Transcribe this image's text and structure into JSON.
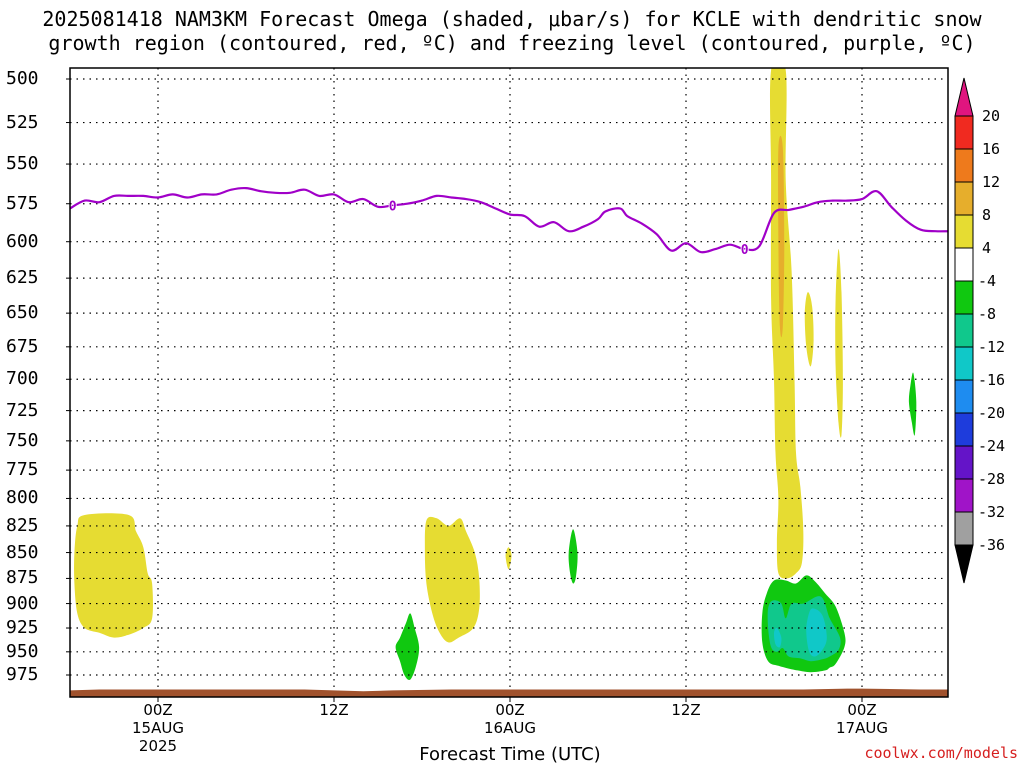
{
  "title": {
    "line1": "2025081418 NAM3KM Forecast Omega (shaded, μbar/s) for KCLE with dendritic snow",
    "line2": "growth region (contoured, red, ºC) and freezing level (contoured, purple, ºC)"
  },
  "credit": "coolwx.com/models",
  "chart_data": {
    "type": "heatmap",
    "xlabel": "Forecast Time (UTC)",
    "ylabel": "",
    "x_ticks": [
      {
        "hours": 10,
        "label": "00Z",
        "sub1": "15AUG",
        "sub2": "2025"
      },
      {
        "hours": 22,
        "label": "12Z",
        "sub1": "",
        "sub2": ""
      },
      {
        "hours": 34,
        "label": "00Z",
        "sub1": "16AUG",
        "sub2": ""
      },
      {
        "hours": 46,
        "label": "12Z",
        "sub1": "",
        "sub2": ""
      },
      {
        "hours": 58,
        "label": "00Z",
        "sub1": "17AUG",
        "sub2": ""
      }
    ],
    "xlim_hours": [
      4,
      64
    ],
    "y_levels": [
      500,
      525,
      550,
      575,
      600,
      625,
      650,
      675,
      700,
      725,
      750,
      775,
      800,
      825,
      850,
      875,
      900,
      925,
      950,
      975
    ],
    "ylim_hPa": [
      493,
      998
    ],
    "colorbar": {
      "labels": [
        "20",
        "16",
        "12",
        "8",
        "4",
        "-4",
        "-8",
        "-12",
        "-16",
        "-20",
        "-24",
        "-28",
        "-32",
        "-36"
      ],
      "colors": [
        "#e0157f",
        "#f02a20",
        "#ee7a1c",
        "#e6ae2c",
        "#e6dc32",
        "#ffffff",
        "#10c810",
        "#10c88c",
        "#10c8c8",
        "#1e8cf0",
        "#1e3cdc",
        "#6414c8",
        "#a014c8",
        "#a0a0a0",
        "#000000"
      ]
    },
    "freezing_level": {
      "contour_label": "0",
      "color": "#a000c8",
      "points": [
        [
          4,
          578
        ],
        [
          5,
          573
        ],
        [
          6,
          574
        ],
        [
          7,
          570
        ],
        [
          8,
          570
        ],
        [
          9,
          570
        ],
        [
          10,
          571
        ],
        [
          11,
          569
        ],
        [
          12,
          571
        ],
        [
          13,
          569
        ],
        [
          14,
          569
        ],
        [
          15,
          566
        ],
        [
          16,
          565
        ],
        [
          17,
          567
        ],
        [
          18,
          568
        ],
        [
          19,
          568
        ],
        [
          20,
          566
        ],
        [
          21,
          570
        ],
        [
          22,
          569
        ],
        [
          23,
          574
        ],
        [
          24,
          572
        ],
        [
          25,
          577
        ],
        [
          26,
          576
        ],
        [
          27,
          575
        ],
        [
          28,
          573
        ],
        [
          29,
          570
        ],
        [
          30,
          571
        ],
        [
          31,
          572
        ],
        [
          32,
          574
        ],
        [
          33,
          578
        ],
        [
          34,
          582
        ],
        [
          35,
          583
        ],
        [
          36,
          590
        ],
        [
          37,
          587
        ],
        [
          38,
          593
        ],
        [
          39,
          590
        ],
        [
          40,
          585
        ],
        [
          40.5,
          580
        ],
        [
          41.5,
          578
        ],
        [
          42,
          583
        ],
        [
          43,
          588
        ],
        [
          44,
          595
        ],
        [
          45,
          606
        ],
        [
          46,
          601
        ],
        [
          47,
          607
        ],
        [
          48,
          605
        ],
        [
          49,
          602
        ],
        [
          50,
          605
        ],
        [
          51,
          603
        ],
        [
          52,
          581
        ],
        [
          53,
          579
        ],
        [
          54,
          577
        ],
        [
          55,
          574
        ],
        [
          56,
          573
        ],
        [
          57,
          573
        ],
        [
          58,
          572
        ],
        [
          59,
          567
        ],
        [
          60,
          577
        ],
        [
          61,
          586
        ],
        [
          62,
          592
        ],
        [
          63,
          593
        ],
        [
          64,
          593
        ]
      ]
    },
    "regions": [
      {
        "value": "4 to 8",
        "color": "#e6dc32",
        "points": [
          [
            4.5,
            825
          ],
          [
            5,
            815
          ],
          [
            8,
            815
          ],
          [
            8.5,
            830
          ],
          [
            9,
            845
          ],
          [
            9.3,
            870
          ],
          [
            9.6,
            880
          ],
          [
            9.6,
            915
          ],
          [
            9,
            925
          ],
          [
            8,
            932
          ],
          [
            7,
            935
          ],
          [
            6,
            930
          ],
          [
            5,
            925
          ],
          [
            4.5,
            910
          ],
          [
            4.3,
            880
          ],
          [
            4.3,
            850
          ]
        ]
      },
      {
        "value": "4 to 8",
        "color": "#e6dc32",
        "points": [
          [
            28.3,
            820
          ],
          [
            29,
            818
          ],
          [
            29.8,
            825
          ],
          [
            30.6,
            818
          ],
          [
            31,
            830
          ],
          [
            31.6,
            850
          ],
          [
            31.9,
            875
          ],
          [
            31.9,
            905
          ],
          [
            31.5,
            925
          ],
          [
            30.5,
            935
          ],
          [
            29.8,
            940
          ],
          [
            29.2,
            930
          ],
          [
            28.7,
            910
          ],
          [
            28.3,
            880
          ],
          [
            28.2,
            850
          ]
        ]
      },
      {
        "value": "4 to 8",
        "color": "#e6dc32",
        "points": [
          [
            33.9,
            845
          ],
          [
            34.1,
            853
          ],
          [
            33.9,
            866
          ],
          [
            33.7,
            853
          ]
        ]
      },
      {
        "value": "4 to 8",
        "color": "#e6dc32",
        "points": [
          [
            51.8,
            495
          ],
          [
            52.8,
            495
          ],
          [
            52.8,
            560
          ],
          [
            53.2,
            620
          ],
          [
            53.4,
            700
          ],
          [
            53.5,
            760
          ],
          [
            53.8,
            790
          ],
          [
            54,
            830
          ],
          [
            53.9,
            860
          ],
          [
            53.5,
            870
          ],
          [
            52.9,
            875
          ],
          [
            52.3,
            870
          ],
          [
            52.2,
            840
          ],
          [
            52.3,
            800
          ],
          [
            52.1,
            760
          ],
          [
            52,
            700
          ],
          [
            51.8,
            640
          ],
          [
            51.8,
            560
          ]
        ]
      },
      {
        "value": "8 to 12",
        "color": "#e6ae2c",
        "points": [
          [
            52.3,
            540
          ],
          [
            52.6,
            540
          ],
          [
            52.7,
            600
          ],
          [
            52.6,
            660
          ],
          [
            52.4,
            660
          ],
          [
            52.3,
            600
          ]
        ]
      },
      {
        "value": "4 to 8",
        "color": "#e6dc32",
        "points": [
          [
            54.3,
            635
          ],
          [
            54.6,
            645
          ],
          [
            54.7,
            670
          ],
          [
            54.5,
            690
          ],
          [
            54.2,
            675
          ],
          [
            54.1,
            650
          ]
        ]
      },
      {
        "value": "4 to 8",
        "color": "#e6dc32",
        "points": [
          [
            56.4,
            605
          ],
          [
            56.6,
            635
          ],
          [
            56.7,
            700
          ],
          [
            56.6,
            745
          ],
          [
            56.4,
            735
          ],
          [
            56.2,
            690
          ],
          [
            56.2,
            640
          ]
        ]
      },
      {
        "value": "-8 to -4",
        "color": "#10c810",
        "points": [
          [
            27.2,
            910
          ],
          [
            27.5,
            925
          ],
          [
            27.8,
            945
          ],
          [
            27.6,
            965
          ],
          [
            27.2,
            980
          ],
          [
            26.8,
            975
          ],
          [
            26.5,
            960
          ],
          [
            26.2,
            945
          ],
          [
            26.5,
            935
          ],
          [
            26.9,
            920
          ]
        ]
      },
      {
        "value": "-8 to -4",
        "color": "#10c810",
        "points": [
          [
            38.3,
            828
          ],
          [
            38.6,
            850
          ],
          [
            38.5,
            873
          ],
          [
            38.3,
            880
          ],
          [
            38.1,
            870
          ],
          [
            38.0,
            850
          ]
        ]
      },
      {
        "value": "-8 to -4",
        "color": "#10c810",
        "points": [
          [
            61.5,
            695
          ],
          [
            61.7,
            718
          ],
          [
            61.6,
            745
          ],
          [
            61.4,
            735
          ],
          [
            61.2,
            718
          ],
          [
            61.3,
            705
          ]
        ]
      },
      {
        "value": "-8 to -4",
        "color": "#10c810",
        "points": [
          [
            52,
            877
          ],
          [
            52.8,
            877
          ],
          [
            53.5,
            880
          ],
          [
            54.2,
            872
          ],
          [
            54.8,
            878
          ],
          [
            55.5,
            890
          ],
          [
            56.2,
            903
          ],
          [
            56.8,
            930
          ],
          [
            56.8,
            945
          ],
          [
            56.2,
            963
          ],
          [
            55.8,
            967
          ],
          [
            55.5,
            970
          ],
          [
            54.5,
            972
          ],
          [
            53.6,
            970
          ],
          [
            53,
            968
          ],
          [
            52.3,
            965
          ],
          [
            51.6,
            960
          ],
          [
            51.2,
            940
          ],
          [
            51.2,
            910
          ],
          [
            51.5,
            890
          ]
        ]
      },
      {
        "value": "-12 to -8",
        "color": "#10c88c",
        "points": [
          [
            51.9,
            897
          ],
          [
            52.5,
            900
          ],
          [
            52.8,
            915
          ],
          [
            53.2,
            900
          ],
          [
            54,
            900
          ],
          [
            55.2,
            893
          ],
          [
            55.8,
            915
          ],
          [
            56.5,
            935
          ],
          [
            56.4,
            948
          ],
          [
            55.8,
            955
          ],
          [
            55.3,
            958
          ],
          [
            54.5,
            960
          ],
          [
            53.8,
            957
          ],
          [
            53,
            955
          ],
          [
            52.6,
            946
          ],
          [
            52.2,
            950
          ],
          [
            51.8,
            945
          ],
          [
            51.6,
            925
          ],
          [
            51.6,
            905
          ]
        ]
      },
      {
        "value": "-16 to -12",
        "color": "#10c8c8",
        "points": [
          [
            52.2,
            925
          ],
          [
            52.5,
            935
          ],
          [
            52.4,
            945
          ],
          [
            52.1,
            942
          ],
          [
            52,
            930
          ]
        ]
      },
      {
        "value": "-16 to -12",
        "color": "#10c8c8",
        "points": [
          [
            54.6,
            905
          ],
          [
            55.3,
            912
          ],
          [
            55.6,
            935
          ],
          [
            55.3,
            948
          ],
          [
            54.8,
            955
          ],
          [
            54.4,
            950
          ],
          [
            54.2,
            930
          ],
          [
            54.3,
            915
          ]
        ]
      }
    ],
    "ground": {
      "color": "#a0522d",
      "points": [
        [
          4,
          992
        ],
        [
          6,
          991
        ],
        [
          10,
          991
        ],
        [
          20,
          991
        ],
        [
          22,
          992
        ],
        [
          24,
          993
        ],
        [
          26,
          992
        ],
        [
          30,
          991
        ],
        [
          36,
          991
        ],
        [
          46,
          991
        ],
        [
          54,
          991
        ],
        [
          57,
          990
        ],
        [
          58,
          990
        ],
        [
          62,
          991
        ],
        [
          64,
          991
        ]
      ]
    }
  }
}
